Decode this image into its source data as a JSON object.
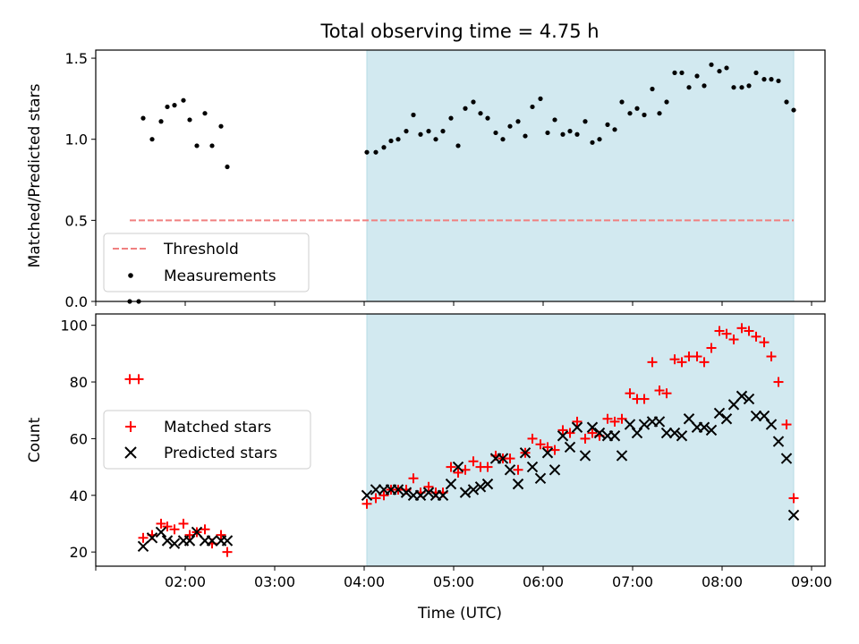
{
  "title": "Total observing time = 4.75 h",
  "chart_data": [
    {
      "type": "scatter",
      "ylabel": "Matched/Predicted stars",
      "xlabel": "",
      "x_unit": "hours UTC",
      "xlim": [
        1.0,
        9.15
      ],
      "ylim": [
        0.0,
        1.55
      ],
      "yticks": [
        0.0,
        0.5,
        1.0,
        1.5
      ],
      "ytick_labels": [
        "0.0",
        "0.5",
        "1.0",
        "1.5"
      ],
      "shaded_interval": [
        4.03,
        8.8
      ],
      "shade_color": "#d2e9f0",
      "legend": {
        "placement": "lower-left",
        "threshold_label": "Threshold",
        "measurements_label": "Measurements"
      },
      "threshold": {
        "y": 0.5,
        "x_range": [
          1.38,
          8.8
        ],
        "color": "#f08080"
      },
      "series": [
        {
          "name": "Measurements",
          "color": "#000000",
          "points": [
            [
              1.38,
              0.0
            ],
            [
              1.48,
              0.0
            ],
            [
              1.53,
              1.13
            ],
            [
              1.63,
              1.0
            ],
            [
              1.73,
              1.11
            ],
            [
              1.8,
              1.2
            ],
            [
              1.88,
              1.21
            ],
            [
              1.98,
              1.24
            ],
            [
              2.05,
              1.12
            ],
            [
              2.13,
              0.96
            ],
            [
              2.22,
              1.16
            ],
            [
              2.3,
              0.96
            ],
            [
              2.4,
              1.08
            ],
            [
              2.47,
              0.83
            ],
            [
              4.03,
              0.92
            ],
            [
              4.13,
              0.92
            ],
            [
              4.22,
              0.95
            ],
            [
              4.3,
              0.99
            ],
            [
              4.38,
              1.0
            ],
            [
              4.47,
              1.05
            ],
            [
              4.55,
              1.15
            ],
            [
              4.63,
              1.03
            ],
            [
              4.72,
              1.05
            ],
            [
              4.8,
              1.0
            ],
            [
              4.88,
              1.05
            ],
            [
              4.97,
              1.13
            ],
            [
              5.05,
              0.96
            ],
            [
              5.13,
              1.19
            ],
            [
              5.22,
              1.23
            ],
            [
              5.3,
              1.16
            ],
            [
              5.38,
              1.13
            ],
            [
              5.47,
              1.04
            ],
            [
              5.55,
              1.0
            ],
            [
              5.63,
              1.08
            ],
            [
              5.72,
              1.11
            ],
            [
              5.8,
              1.02
            ],
            [
              5.88,
              1.2
            ],
            [
              5.97,
              1.25
            ],
            [
              6.05,
              1.04
            ],
            [
              6.13,
              1.12
            ],
            [
              6.22,
              1.03
            ],
            [
              6.3,
              1.05
            ],
            [
              6.38,
              1.03
            ],
            [
              6.47,
              1.11
            ],
            [
              6.55,
              0.98
            ],
            [
              6.63,
              1.0
            ],
            [
              6.72,
              1.09
            ],
            [
              6.8,
              1.06
            ],
            [
              6.88,
              1.23
            ],
            [
              6.97,
              1.16
            ],
            [
              7.05,
              1.19
            ],
            [
              7.13,
              1.15
            ],
            [
              7.22,
              1.31
            ],
            [
              7.3,
              1.16
            ],
            [
              7.38,
              1.23
            ],
            [
              7.47,
              1.41
            ],
            [
              7.55,
              1.41
            ],
            [
              7.63,
              1.32
            ],
            [
              7.72,
              1.39
            ],
            [
              7.8,
              1.33
            ],
            [
              7.88,
              1.46
            ],
            [
              7.97,
              1.42
            ],
            [
              8.05,
              1.44
            ],
            [
              8.13,
              1.32
            ],
            [
              8.22,
              1.32
            ],
            [
              8.3,
              1.33
            ],
            [
              8.38,
              1.41
            ],
            [
              8.47,
              1.37
            ],
            [
              8.55,
              1.37
            ],
            [
              8.63,
              1.36
            ],
            [
              8.72,
              1.23
            ],
            [
              8.8,
              1.18
            ]
          ]
        }
      ]
    },
    {
      "type": "scatter",
      "ylabel": "Count",
      "xlabel": "Time (UTC)",
      "x_unit": "hours UTC",
      "xlim": [
        1.0,
        9.15
      ],
      "ylim": [
        15,
        104
      ],
      "yticks": [
        20,
        40,
        60,
        80,
        100
      ],
      "ytick_labels": [
        "20",
        "40",
        "60",
        "80",
        "100"
      ],
      "xticks": [
        1.0,
        2.0,
        3.0,
        4.0,
        5.0,
        6.0,
        7.0,
        8.0,
        9.0
      ],
      "xtick_labels": [
        "",
        "02:00",
        "03:00",
        "04:00",
        "05:00",
        "06:00",
        "07:00",
        "08:00",
        "09:00"
      ],
      "shaded_interval": [
        4.03,
        8.8
      ],
      "shade_color": "#d2e9f0",
      "legend": {
        "placement": "center-left"
      },
      "series": [
        {
          "name": "Matched stars",
          "marker": "plus",
          "color": "#ff0000",
          "points": [
            [
              1.38,
              81
            ],
            [
              1.48,
              81
            ],
            [
              1.53,
              25
            ],
            [
              1.63,
              26
            ],
            [
              1.73,
              30
            ],
            [
              1.8,
              29
            ],
            [
              1.88,
              28
            ],
            [
              1.98,
              30
            ],
            [
              2.05,
              26
            ],
            [
              2.13,
              27
            ],
            [
              2.22,
              28
            ],
            [
              2.3,
              23
            ],
            [
              2.4,
              26
            ],
            [
              2.47,
              20
            ],
            [
              4.03,
              37
            ],
            [
              4.13,
              39
            ],
            [
              4.22,
              40
            ],
            [
              4.3,
              42
            ],
            [
              4.38,
              42
            ],
            [
              4.47,
              42
            ],
            [
              4.55,
              46
            ],
            [
              4.63,
              41
            ],
            [
              4.72,
              43
            ],
            [
              4.8,
              41
            ],
            [
              4.88,
              41
            ],
            [
              4.97,
              50
            ],
            [
              5.05,
              48
            ],
            [
              5.13,
              49
            ],
            [
              5.22,
              52
            ],
            [
              5.3,
              50
            ],
            [
              5.38,
              50
            ],
            [
              5.47,
              54
            ],
            [
              5.55,
              53
            ],
            [
              5.63,
              53
            ],
            [
              5.72,
              49
            ],
            [
              5.8,
              55
            ],
            [
              5.88,
              60
            ],
            [
              5.97,
              58
            ],
            [
              6.05,
              57
            ],
            [
              6.13,
              56
            ],
            [
              6.22,
              63
            ],
            [
              6.3,
              62
            ],
            [
              6.38,
              66
            ],
            [
              6.47,
              60
            ],
            [
              6.55,
              62
            ],
            [
              6.63,
              61
            ],
            [
              6.72,
              67
            ],
            [
              6.8,
              66
            ],
            [
              6.88,
              67
            ],
            [
              6.97,
              76
            ],
            [
              7.05,
              74
            ],
            [
              7.13,
              74
            ],
            [
              7.22,
              87
            ],
            [
              7.3,
              77
            ],
            [
              7.38,
              76
            ],
            [
              7.47,
              88
            ],
            [
              7.55,
              87
            ],
            [
              7.63,
              89
            ],
            [
              7.72,
              89
            ],
            [
              7.8,
              87
            ],
            [
              7.88,
              92
            ],
            [
              7.97,
              98
            ],
            [
              8.05,
              97
            ],
            [
              8.13,
              95
            ],
            [
              8.22,
              99
            ],
            [
              8.3,
              98
            ],
            [
              8.38,
              96
            ],
            [
              8.47,
              94
            ],
            [
              8.55,
              89
            ],
            [
              8.63,
              80
            ],
            [
              8.72,
              65
            ],
            [
              8.8,
              39
            ]
          ]
        },
        {
          "name": "Predicted stars",
          "marker": "x",
          "color": "#000000",
          "points": [
            [
              1.53,
              22
            ],
            [
              1.63,
              25
            ],
            [
              1.73,
              27
            ],
            [
              1.8,
              24
            ],
            [
              1.88,
              23
            ],
            [
              1.98,
              24
            ],
            [
              2.05,
              24
            ],
            [
              2.13,
              27
            ],
            [
              2.22,
              24
            ],
            [
              2.3,
              24
            ],
            [
              2.4,
              24
            ],
            [
              2.47,
              24
            ],
            [
              4.03,
              40
            ],
            [
              4.13,
              42
            ],
            [
              4.22,
              42
            ],
            [
              4.3,
              42
            ],
            [
              4.38,
              42
            ],
            [
              4.47,
              41
            ],
            [
              4.55,
              40
            ],
            [
              4.63,
              40
            ],
            [
              4.72,
              41
            ],
            [
              4.8,
              40
            ],
            [
              4.88,
              40
            ],
            [
              4.97,
              44
            ],
            [
              5.05,
              50
            ],
            [
              5.13,
              41
            ],
            [
              5.22,
              42
            ],
            [
              5.3,
              43
            ],
            [
              5.38,
              44
            ],
            [
              5.47,
              53
            ],
            [
              5.55,
              53
            ],
            [
              5.63,
              49
            ],
            [
              5.72,
              44
            ],
            [
              5.8,
              55
            ],
            [
              5.88,
              50
            ],
            [
              5.97,
              46
            ],
            [
              6.05,
              55
            ],
            [
              6.13,
              49
            ],
            [
              6.22,
              61
            ],
            [
              6.3,
              57
            ],
            [
              6.38,
              64
            ],
            [
              6.47,
              54
            ],
            [
              6.55,
              64
            ],
            [
              6.63,
              62
            ],
            [
              6.72,
              61
            ],
            [
              6.8,
              61
            ],
            [
              6.88,
              54
            ],
            [
              6.97,
              65
            ],
            [
              7.05,
              62
            ],
            [
              7.13,
              65
            ],
            [
              7.22,
              66
            ],
            [
              7.3,
              66
            ],
            [
              7.38,
              62
            ],
            [
              7.47,
              62
            ],
            [
              7.55,
              61
            ],
            [
              7.63,
              67
            ],
            [
              7.72,
              64
            ],
            [
              7.8,
              64
            ],
            [
              7.88,
              63
            ],
            [
              7.97,
              69
            ],
            [
              8.05,
              67
            ],
            [
              8.13,
              72
            ],
            [
              8.22,
              75
            ],
            [
              8.3,
              74
            ],
            [
              8.38,
              68
            ],
            [
              8.47,
              68
            ],
            [
              8.55,
              65
            ],
            [
              8.63,
              59
            ],
            [
              8.72,
              53
            ],
            [
              8.8,
              33
            ]
          ]
        }
      ]
    }
  ]
}
